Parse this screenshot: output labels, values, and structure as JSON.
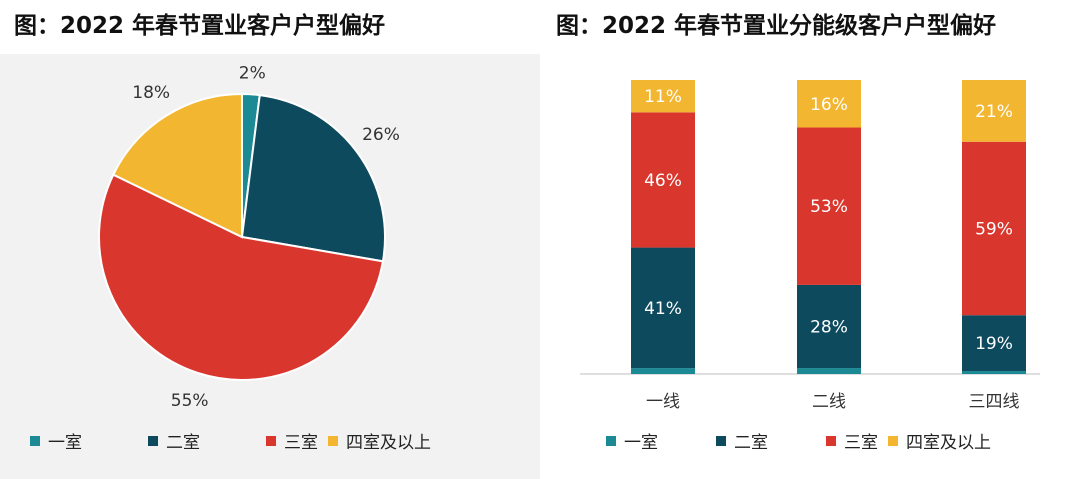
{
  "colors": {
    "one_room": "#1B8A94",
    "two_room": "#0E4A5E",
    "three_room": "#D9372E",
    "four_plus": "#F3B631"
  },
  "chart_data": [
    {
      "type": "pie",
      "title": "图：2022 年春节置业客户户型偏好",
      "categories": [
        "一室",
        "二室",
        "三室",
        "四室及以上"
      ],
      "values": [
        2,
        26,
        55,
        18
      ],
      "labels": [
        "2%",
        "26%",
        "55%",
        "18%"
      ],
      "legend_position": "bottom"
    },
    {
      "type": "bar",
      "stacked": true,
      "title": "图：2022 年春节置业分能级客户户型偏好",
      "categories": [
        "一线",
        "二线",
        "三四线"
      ],
      "series": [
        {
          "name": "一室",
          "values": [
            2,
            2,
            1
          ],
          "labels": [
            "",
            "",
            ""
          ]
        },
        {
          "name": "二室",
          "values": [
            41,
            28,
            19
          ],
          "labels": [
            "41%",
            "28%",
            "19%"
          ]
        },
        {
          "name": "三室",
          "values": [
            46,
            53,
            59
          ],
          "labels": [
            "46%",
            "53%",
            "59%"
          ]
        },
        {
          "name": "四室及以上",
          "values": [
            11,
            16,
            21
          ],
          "labels": [
            "11%",
            "16%",
            "21%"
          ]
        }
      ],
      "ylim": [
        0,
        100
      ],
      "legend_position": "bottom"
    }
  ]
}
